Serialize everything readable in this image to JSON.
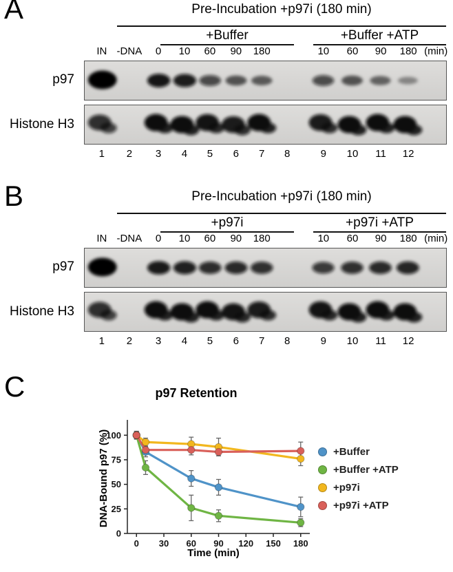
{
  "panelA": {
    "label": "A",
    "header": "Pre-Incubation +p97i (180 min)",
    "groups": [
      {
        "label": "+Buffer"
      },
      {
        "label": "+Buffer +ATP"
      }
    ],
    "pre_lanes": [
      "IN",
      "-DNA",
      "0"
    ],
    "time_lanes": [
      "10",
      "60",
      "90",
      "180"
    ],
    "min_suffix": "(min)",
    "lane_numbers": [
      "1",
      "2",
      "3",
      "4",
      "5",
      "6",
      "7",
      "8",
      "9",
      "10",
      "11",
      "12"
    ],
    "blots": [
      {
        "label": "p97",
        "style": "p97",
        "bands": [
          1,
          0,
          0.95,
          0.9,
          0.62,
          0.5,
          0.45,
          0,
          0.6,
          0.5,
          0.4,
          0.18
        ]
      },
      {
        "label": "Histone H3",
        "style": "h3",
        "bands": [
          0.75,
          0,
          1,
          1,
          0.95,
          0.9,
          1,
          0,
          0.9,
          1,
          1,
          1
        ]
      }
    ]
  },
  "panelB": {
    "label": "B",
    "header": "Pre-Incubation +p97i (180 min)",
    "groups": [
      {
        "label": "+p97i"
      },
      {
        "label": "+p97i +ATP"
      }
    ],
    "pre_lanes": [
      "IN",
      "-DNA",
      "0"
    ],
    "time_lanes": [
      "10",
      "60",
      "90",
      "180"
    ],
    "min_suffix": "(min)",
    "lane_numbers": [
      "1",
      "2",
      "3",
      "4",
      "5",
      "6",
      "7",
      "8",
      "9",
      "10",
      "11",
      "12"
    ],
    "blots": [
      {
        "label": "p97",
        "style": "p97",
        "bands": [
          1,
          0,
          0.92,
          0.88,
          0.8,
          0.82,
          0.78,
          0,
          0.72,
          0.78,
          0.82,
          0.85
        ]
      },
      {
        "label": "Histone H3",
        "style": "h3",
        "bands": [
          0.75,
          0,
          1,
          1,
          1,
          0.95,
          0.9,
          0,
          0.95,
          1,
          1,
          1
        ]
      }
    ]
  },
  "panelC": {
    "label": "C"
  },
  "chart_data": {
    "type": "line",
    "title": "p97 Retention",
    "xlabel": "Time (min)",
    "ylabel": "DNA-Bound p97 (%)",
    "x": [
      0,
      10,
      60,
      90,
      180
    ],
    "xticks": [
      0,
      30,
      60,
      90,
      120,
      150,
      180
    ],
    "yticks": [
      0,
      25,
      50,
      75,
      100
    ],
    "xlim": [
      -10,
      190
    ],
    "ylim": [
      0,
      110
    ],
    "grid": false,
    "legend_position": "right",
    "series": [
      {
        "name": "+Buffer",
        "color": "#4f93c8",
        "values": [
          100,
          83,
          56,
          47,
          27
        ],
        "errors": [
          3,
          5,
          8,
          8,
          10
        ]
      },
      {
        "name": "+Buffer +ATP",
        "color": "#6fb544",
        "values": [
          100,
          67,
          26,
          18,
          11
        ],
        "errors": [
          3,
          7,
          13,
          6,
          4
        ]
      },
      {
        "name": "+p97i",
        "color": "#f2b71e",
        "values": [
          100,
          93,
          91,
          88,
          76
        ],
        "errors": [
          4,
          4,
          7,
          9,
          7
        ]
      },
      {
        "name": "+p97i +ATP",
        "color": "#d9605a",
        "values": [
          100,
          85,
          85,
          83,
          84
        ],
        "errors": [
          4,
          4,
          5,
          4,
          9
        ]
      }
    ]
  }
}
